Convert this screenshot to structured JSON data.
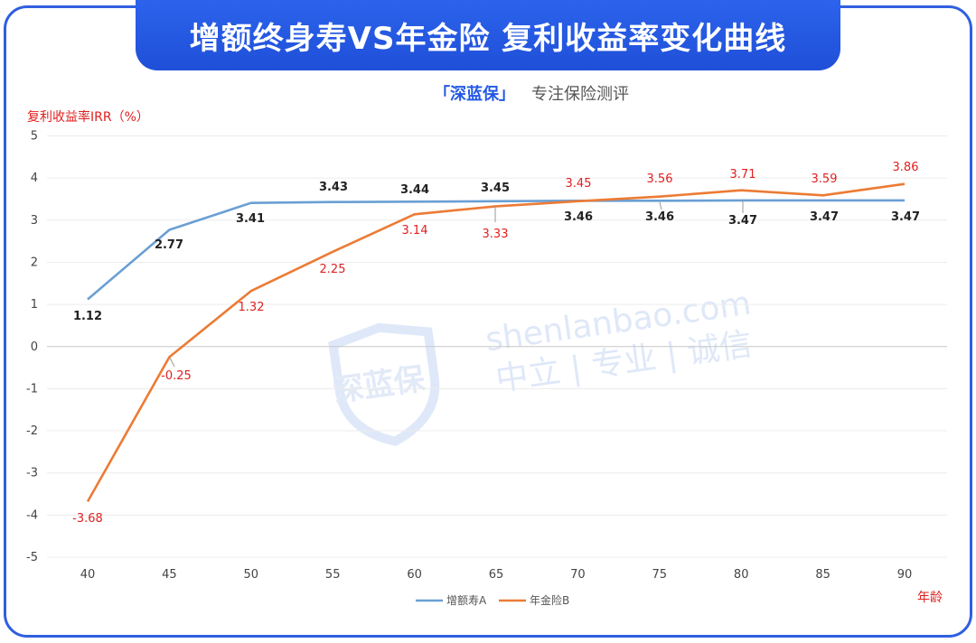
{
  "banner": {
    "title": "增额终身寿VS年金险 复利收益率变化曲线"
  },
  "subtitle": {
    "brand": "「深蓝保」",
    "tagline": "专注保险测评"
  },
  "watermark": {
    "logo_text": "深蓝保",
    "url": "shenlanbao.com",
    "slogan": "中立 | 专业 | 诚信"
  },
  "colors": {
    "frame": "#2f5fe0",
    "banner": "#2358e3",
    "series_a": "#6a9fd4",
    "series_b": "#ec7b35",
    "label_b": "#e02020"
  },
  "chart_data": {
    "type": "line",
    "title": "",
    "xlabel": "年龄",
    "ylabel": "复利收益率IRR（%）",
    "x": [
      40,
      45,
      50,
      55,
      60,
      65,
      70,
      75,
      80,
      85,
      90
    ],
    "ylim": [
      -5,
      5
    ],
    "yticks": [
      5,
      4,
      3,
      2,
      1,
      0,
      -1,
      -2,
      -3,
      -4,
      -5
    ],
    "grid": true,
    "legend_position": "bottom",
    "series": [
      {
        "name": "增额寿A",
        "values": [
          1.12,
          2.77,
          3.41,
          3.43,
          3.44,
          3.45,
          3.46,
          3.46,
          3.47,
          3.47,
          3.47
        ]
      },
      {
        "name": "年金险B",
        "values": [
          -3.68,
          -0.25,
          1.32,
          2.25,
          3.14,
          3.33,
          3.45,
          3.56,
          3.71,
          3.59,
          3.86
        ]
      }
    ]
  }
}
